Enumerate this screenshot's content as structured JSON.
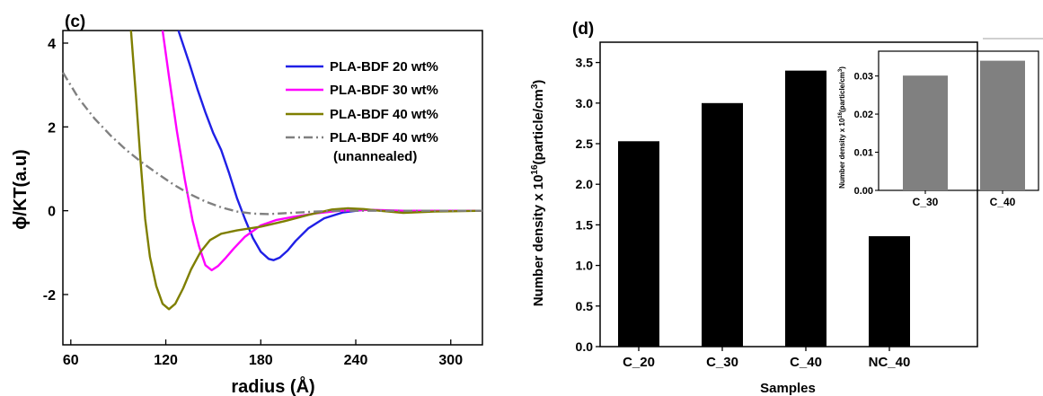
{
  "chart_data": [
    {
      "panel_label": "(c)",
      "type": "line",
      "xlabel": "radius (Å)",
      "ylabel": "ϕ/KT(a.u)",
      "xlim": [
        55,
        320
      ],
      "ylim": [
        -3.2,
        4.3
      ],
      "xticks": [
        60,
        120,
        180,
        240,
        300
      ],
      "yticks": [
        -2,
        0,
        2,
        4
      ],
      "legend_position": "top-right",
      "series": [
        {
          "name": "PLA-BDF 20 wt%",
          "color": "#1f1fe6",
          "style": "solid",
          "x": [
            128,
            135,
            140,
            145,
            150,
            155,
            160,
            165,
            170,
            175,
            180,
            185,
            188,
            192,
            197,
            202,
            210,
            220,
            232,
            245,
            260,
            280,
            300,
            320
          ],
          "y": [
            4.3,
            3.5,
            2.9,
            2.35,
            1.85,
            1.45,
            0.9,
            0.3,
            -0.2,
            -0.65,
            -0.98,
            -1.15,
            -1.18,
            -1.12,
            -0.95,
            -0.72,
            -0.42,
            -0.18,
            -0.04,
            0.02,
            0.0,
            -0.02,
            0.0,
            0.0
          ]
        },
        {
          "name": "PLA-BDF 30 wt%",
          "color": "#ff00ff",
          "style": "solid",
          "x": [
            118,
            122,
            127,
            132,
            137,
            141,
            145,
            149,
            153,
            158,
            163,
            170,
            180,
            190,
            200,
            215,
            230,
            250,
            270,
            290,
            320
          ],
          "y": [
            4.3,
            3.2,
            1.9,
            0.75,
            -0.25,
            -0.85,
            -1.3,
            -1.42,
            -1.32,
            -1.12,
            -0.9,
            -0.62,
            -0.35,
            -0.22,
            -0.15,
            -0.06,
            0.0,
            0.02,
            0.0,
            0.0,
            0.0
          ]
        },
        {
          "name": "PLA-BDF 40 wt%",
          "color": "#7f7f00",
          "style": "solid",
          "x": [
            98,
            101,
            104,
            107,
            110,
            114,
            118,
            122,
            126,
            131,
            136,
            142,
            148,
            155,
            165,
            180,
            195,
            210,
            225,
            235,
            245,
            255,
            270,
            290,
            320
          ],
          "y": [
            4.3,
            2.8,
            1.2,
            -0.2,
            -1.1,
            -1.8,
            -2.22,
            -2.35,
            -2.22,
            -1.85,
            -1.4,
            -0.98,
            -0.7,
            -0.55,
            -0.47,
            -0.38,
            -0.25,
            -0.1,
            0.03,
            0.06,
            0.04,
            0.0,
            -0.05,
            -0.02,
            0.0
          ]
        },
        {
          "name": "PLA-BDF 40 wt%",
          "name_line2": "(unannealed)",
          "color": "#808080",
          "style": "dashdot",
          "x": [
            55,
            65,
            75,
            85,
            95,
            105,
            115,
            125,
            135,
            145,
            155,
            165,
            175,
            185,
            200,
            215,
            230,
            250,
            275,
            300,
            320
          ],
          "y": [
            3.3,
            2.68,
            2.2,
            1.8,
            1.45,
            1.15,
            0.88,
            0.62,
            0.4,
            0.22,
            0.08,
            -0.02,
            -0.07,
            -0.08,
            -0.05,
            -0.02,
            0.0,
            0.0,
            0.0,
            0.0,
            0.0
          ]
        }
      ]
    },
    {
      "panel_label": "(d)",
      "type": "bar",
      "xlabel": "Samples",
      "ylabel_main": "Number density x 10",
      "ylabel_sup": "16",
      "ylabel_mid": "(particle/cm",
      "ylabel_sup2": "3",
      "ylabel_end": ")",
      "categories": [
        "C_20",
        "C_30",
        "C_40",
        "NC_40"
      ],
      "values": [
        2.53,
        3.0,
        3.4,
        1.36
      ],
      "ylim": [
        0,
        3.75
      ],
      "yticks": [
        "0.0",
        "0.5",
        "1.0",
        "1.5",
        "2.0",
        "2.5",
        "3.0",
        "3.5"
      ],
      "bar_color": "#000000"
    },
    {
      "panel_label": "inset",
      "type": "bar",
      "ylabel_main": "Number density x 10",
      "ylabel_sup": "16",
      "ylabel_mid": "(particle/cm",
      "ylabel_sup2": "3",
      "ylabel_end": ")",
      "categories": [
        "C_30",
        "C_40"
      ],
      "values": [
        0.0301,
        0.034
      ],
      "ylim": [
        0,
        0.0365
      ],
      "yticks": [
        "0.00",
        "0.01",
        "0.02",
        "0.03"
      ],
      "bar_color": "#808080"
    }
  ]
}
